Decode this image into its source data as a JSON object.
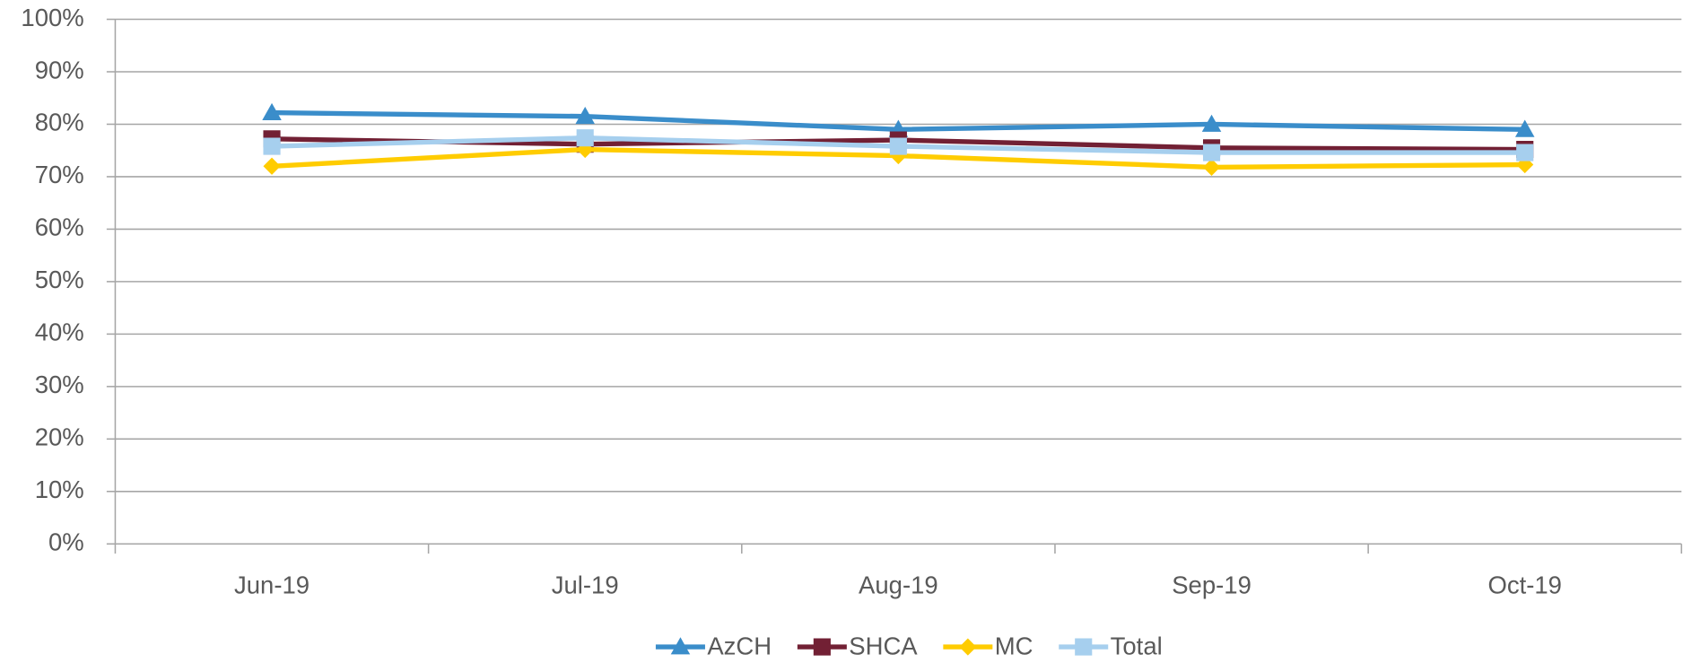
{
  "chart_data": {
    "type": "line",
    "categories": [
      "Jun-19",
      "Jul-19",
      "Aug-19",
      "Sep-19",
      "Oct-19"
    ],
    "series": [
      {
        "name": "AzCH",
        "color": "#3a8dca",
        "marker": "triangle",
        "values": [
          82.2,
          81.5,
          79.0,
          80.0,
          79.0
        ]
      },
      {
        "name": "SHCA",
        "color": "#722034",
        "marker": "square",
        "values": [
          77.2,
          76.2,
          77.0,
          75.5,
          75.2
        ]
      },
      {
        "name": "MC",
        "color": "#ffcc00",
        "marker": "diamond",
        "values": [
          72.0,
          75.2,
          74.0,
          71.8,
          72.3
        ]
      },
      {
        "name": "Total",
        "color": "#a6cfee",
        "marker": "square",
        "values": [
          75.8,
          77.4,
          75.8,
          74.6,
          74.6
        ]
      }
    ],
    "ylim": [
      0,
      100
    ],
    "yticks": [
      {
        "value": 0,
        "label": "0%"
      },
      {
        "value": 10,
        "label": "10%"
      },
      {
        "value": 20,
        "label": "20%"
      },
      {
        "value": 30,
        "label": "30%"
      },
      {
        "value": 40,
        "label": "40%"
      },
      {
        "value": 50,
        "label": "50%"
      },
      {
        "value": 60,
        "label": "60%"
      },
      {
        "value": 70,
        "label": "70%"
      },
      {
        "value": 80,
        "label": "80%"
      },
      {
        "value": 90,
        "label": "90%"
      },
      {
        "value": 100,
        "label": "100%"
      }
    ],
    "grid": true,
    "legend": "bottom"
  }
}
